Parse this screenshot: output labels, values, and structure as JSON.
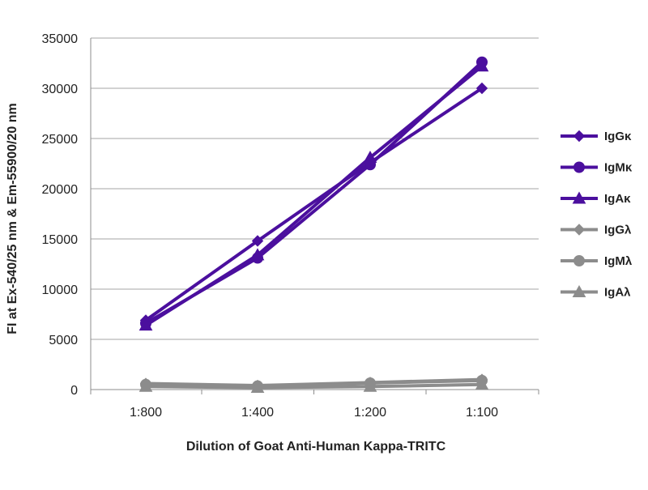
{
  "chart_data": {
    "type": "line",
    "title": "",
    "xlabel": "Dilution of Goat Anti-Human Kappa-TRITC",
    "ylabel": "FI at Ex-540/25 nm & Em-55900/20 nm",
    "categories": [
      "1:800",
      "1:400",
      "1:200",
      "1:100"
    ],
    "ylim": [
      0,
      35000
    ],
    "yticks": [
      0,
      5000,
      10000,
      15000,
      20000,
      25000,
      30000,
      35000
    ],
    "grid": true,
    "legend_position": "right",
    "series": [
      {
        "name": "IgGκ",
        "values": [
          6900,
          14800,
          22600,
          30000
        ],
        "color": "#4b0f9e",
        "marker": "diamond"
      },
      {
        "name": "IgMκ",
        "values": [
          6600,
          13100,
          22400,
          32600
        ],
        "color": "#4b0f9e",
        "marker": "circle"
      },
      {
        "name": "IgAκ",
        "values": [
          6400,
          13400,
          23100,
          32200
        ],
        "color": "#4b0f9e",
        "marker": "triangle"
      },
      {
        "name": "IgGλ",
        "values": [
          600,
          400,
          700,
          1000
        ],
        "color": "#8c8c8c",
        "marker": "diamond"
      },
      {
        "name": "IgMλ",
        "values": [
          500,
          350,
          650,
          900
        ],
        "color": "#8c8c8c",
        "marker": "circle"
      },
      {
        "name": "IgAλ",
        "values": [
          300,
          200,
          300,
          500
        ],
        "color": "#8c8c8c",
        "marker": "triangle"
      }
    ]
  }
}
